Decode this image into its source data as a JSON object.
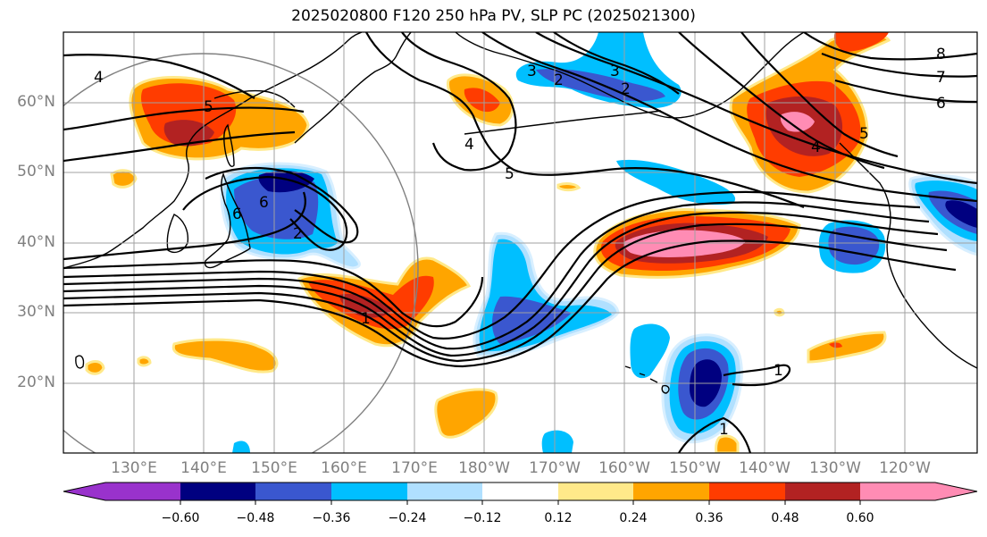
{
  "title": "2025020800 F120 250 hPa PV, SLP PC (2025021300)",
  "lat_labels": [
    "60°N",
    "50°N",
    "40°N",
    "30°N",
    "20°N"
  ],
  "lon_labels": [
    "130°E",
    "140°E",
    "150°E",
    "160°E",
    "170°E",
    "180°W",
    "170°W",
    "160°W",
    "150°W",
    "140°W",
    "130°W",
    "120°W"
  ],
  "contour_labels": [
    "4",
    "5",
    "6",
    "2",
    "1",
    "5",
    "3",
    "2",
    "3",
    "4",
    "8",
    "7",
    "6",
    "5",
    "4",
    "1",
    "1",
    "6",
    "2"
  ],
  "colorbar": {
    "tick_labels": [
      "−0.60",
      "−0.48",
      "−0.36",
      "−0.24",
      "−0.12",
      "0.12",
      "0.24",
      "0.36",
      "0.48",
      "0.60"
    ],
    "colors": [
      "#9932cc",
      "#000080",
      "#3a57cf",
      "#00bfff",
      "#b0e0ff",
      "#ffffff",
      "#ffe98a",
      "#ffa500",
      "#ff3c00",
      "#b22222",
      "#ff8cb4"
    ]
  },
  "pv_colors": {
    "neg_060": "#000080",
    "neg_048": "#3a57cf",
    "neg_036": "#00bfff",
    "neg_024": "#b0e0ff",
    "pos_024": "#ffa500",
    "pos_036": "#ff3c00",
    "pos_048": "#b22222",
    "pos_060": "#ff8cb4",
    "pos_012": "#ffe98a"
  }
}
